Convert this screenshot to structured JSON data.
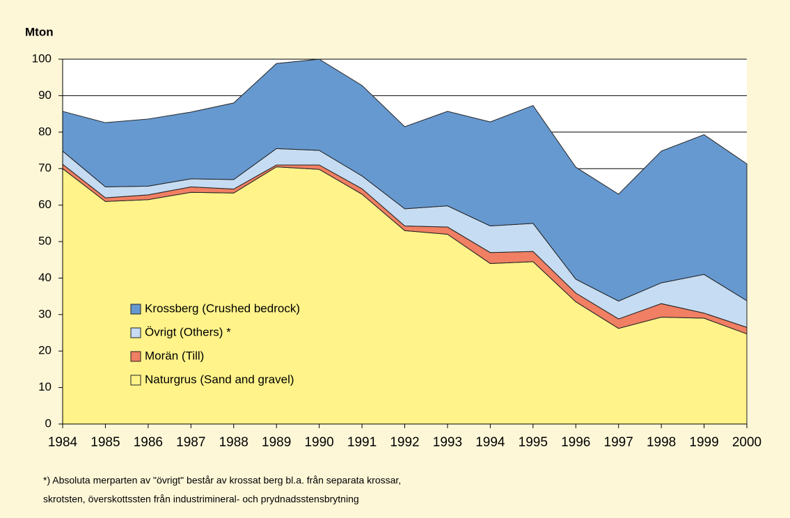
{
  "chart_data": {
    "type": "stacked_area",
    "y_axis_label": "Mton",
    "categories": [
      "1984",
      "1985",
      "1986",
      "1987",
      "1988",
      "1989",
      "1990",
      "1991",
      "1992",
      "1993",
      "1994",
      "1995",
      "1996",
      "1997",
      "1998",
      "1999",
      "2000"
    ],
    "series": [
      {
        "name": "Krossberg (Crushed bedrock)",
        "color": "#6699d0",
        "values": [
          10.9,
          17.6,
          18.4,
          18.3,
          21,
          23.3,
          25,
          24.8,
          22.5,
          25.9,
          28.5,
          32.3,
          30.7,
          29.3,
          36.1,
          38.3,
          37.5
        ]
      },
      {
        "name": "Övrigt (Others) *",
        "color": "#c6dcf2",
        "values": [
          3.6,
          3,
          2.4,
          2.2,
          2.6,
          4.5,
          4,
          3.5,
          4.7,
          5.8,
          7.3,
          7.7,
          3.8,
          4.9,
          5.7,
          10.6,
          7.3
        ]
      },
      {
        "name": "Morän (Till)",
        "color": "#f07f63",
        "values": [
          1.2,
          1,
          1.3,
          1.5,
          1.1,
          0.5,
          1.2,
          1.5,
          1.3,
          2,
          3,
          2.8,
          2.4,
          2.6,
          3.7,
          1.4,
          1.8
        ]
      },
      {
        "name": "Naturgrus (Sand and gravel)",
        "color": "#fff38a",
        "values": [
          70,
          61,
          61.5,
          63.5,
          63.3,
          70.5,
          69.8,
          63,
          53,
          52,
          44,
          44.5,
          33.5,
          26.2,
          29.3,
          29,
          24.7
        ]
      }
    ],
    "ylim": [
      0,
      100
    ],
    "yticks": [
      0,
      10,
      20,
      30,
      40,
      50,
      60,
      70,
      80,
      90,
      100
    ],
    "grid": true,
    "footnote": [
      "*) Absoluta merparten av \"övrigt\" består av krossat berg bl.a. från separata krossar,",
      "skrotsten, överskottssten från industrimineral- och prydnadsstensbrytning"
    ]
  }
}
